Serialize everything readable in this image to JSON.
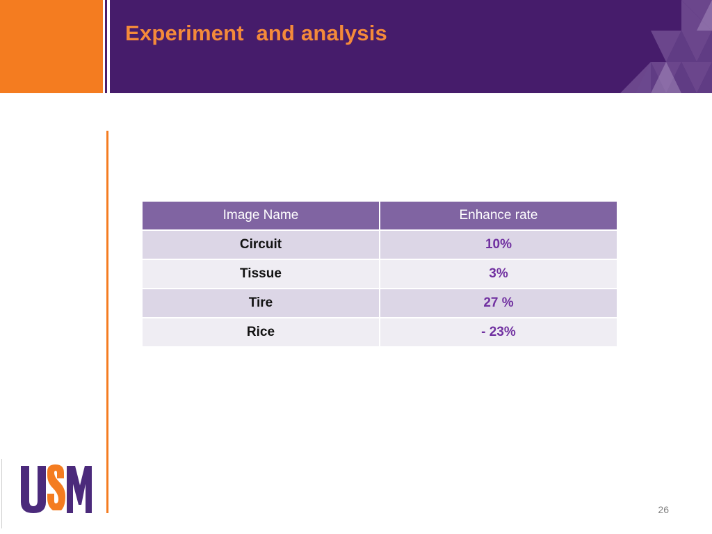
{
  "slide": {
    "title": "Experiment  and analysis",
    "page_number": "26",
    "colors": {
      "orange": "#f47c20",
      "purple": "#461c6b",
      "title_orange": "#f48a3a",
      "table_header": "#8064a2",
      "rate_text": "#7030a0"
    }
  },
  "table": {
    "headers": [
      "Image Name",
      "Enhance rate"
    ],
    "rows": [
      {
        "name": "Circuit",
        "rate": "10%"
      },
      {
        "name": "Tissue",
        "rate": "3%"
      },
      {
        "name": "Tire",
        "rate": "27 %"
      },
      {
        "name": "Rice",
        "rate": "- 23%"
      }
    ]
  },
  "logo": {
    "text": "USM"
  }
}
